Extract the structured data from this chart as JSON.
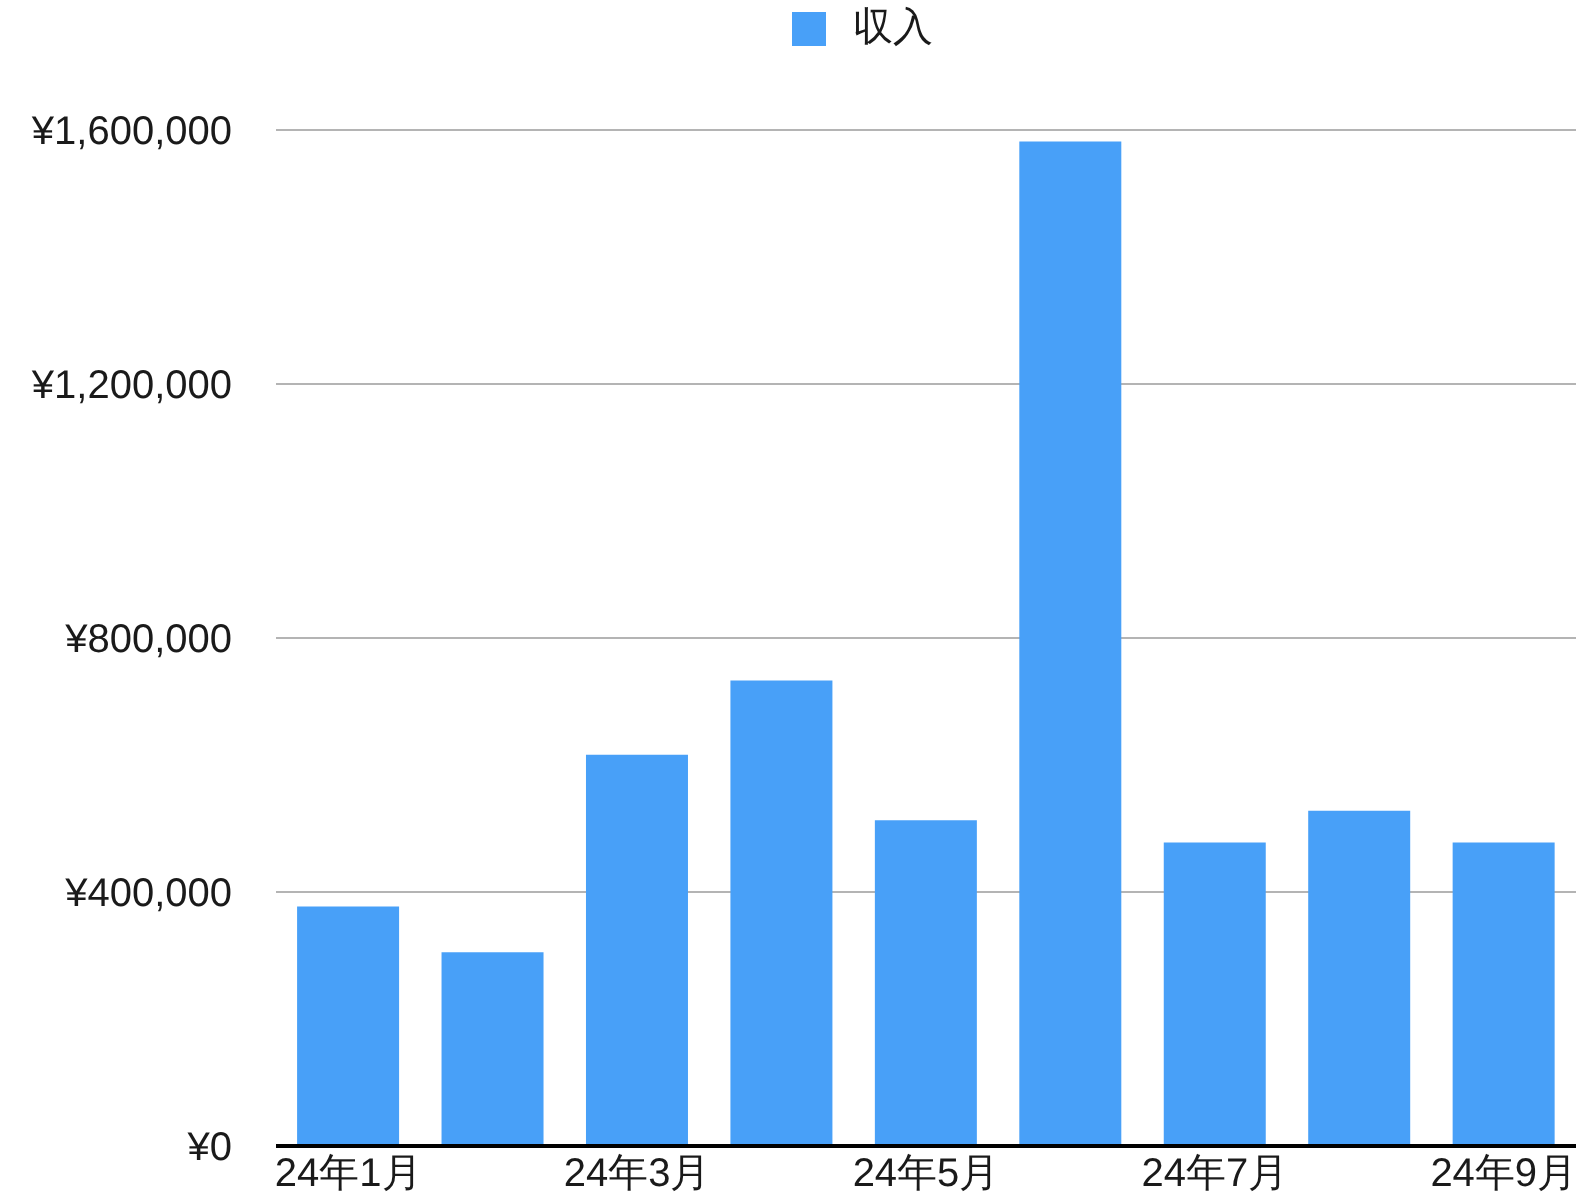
{
  "chart_data": {
    "type": "bar",
    "categories": [
      "24年1月",
      null,
      "24年3月",
      null,
      "24年5月",
      null,
      "24年7月",
      null,
      "24年9月"
    ],
    "series": [
      {
        "name": "収入",
        "color": "#48a0f8",
        "values": [
          377000,
          305000,
          616000,
          733000,
          513000,
          1582000,
          478000,
          528000,
          478000
        ]
      }
    ],
    "ylim": [
      0,
      1600000
    ],
    "yticks": [
      {
        "value": 0,
        "label": "¥0"
      },
      {
        "value": 400000,
        "label": "¥400,000"
      },
      {
        "value": 800000,
        "label": "¥800,000"
      },
      {
        "value": 1200000,
        "label": "¥1,200,000"
      },
      {
        "value": 1600000,
        "label": "¥1,600,000"
      }
    ],
    "grid": "y",
    "legend": "top"
  }
}
